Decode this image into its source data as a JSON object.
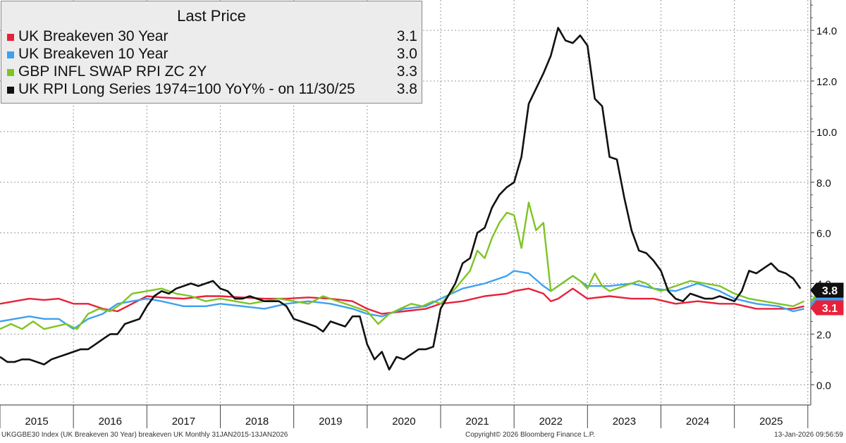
{
  "chart_data": {
    "type": "line",
    "title": "Last Price",
    "ylim": [
      -0.8,
      15.2
    ],
    "yticks": [
      "0.0",
      "2.0",
      "4.0",
      "6.0",
      "8.0",
      "10.0",
      "12.0",
      "14.0"
    ],
    "ytick_values": [
      0,
      2,
      4,
      6,
      8,
      10,
      12,
      14
    ],
    "years": [
      "2015",
      "2016",
      "2017",
      "2018",
      "2019",
      "2020",
      "2021",
      "2022",
      "2023",
      "2024",
      "2025"
    ],
    "x_start": 2015.0,
    "x_end": 2026.04,
    "series": [
      {
        "name": "UK Breakeven 30 Year",
        "last": "3.1",
        "color": "#e8213a",
        "x": [
          2015.0,
          2015.2,
          2015.4,
          2015.6,
          2015.8,
          2016.0,
          2016.2,
          2016.4,
          2016.6,
          2016.8,
          2017.0,
          2017.2,
          2017.5,
          2017.8,
          2018.0,
          2018.3,
          2018.6,
          2018.9,
          2019.2,
          2019.5,
          2019.8,
          2020.0,
          2020.2,
          2020.5,
          2020.8,
          2021.0,
          2021.3,
          2021.6,
          2021.9,
          2022.0,
          2022.2,
          2022.4,
          2022.5,
          2022.6,
          2022.8,
          2023.0,
          2023.3,
          2023.6,
          2023.9,
          2024.2,
          2024.5,
          2024.8,
          2025.0,
          2025.3,
          2025.6,
          2025.8,
          2025.95
        ],
        "y": [
          3.2,
          3.3,
          3.4,
          3.35,
          3.4,
          3.2,
          3.2,
          3.0,
          2.9,
          3.2,
          3.5,
          3.45,
          3.4,
          3.5,
          3.5,
          3.45,
          3.4,
          3.4,
          3.45,
          3.4,
          3.3,
          3.0,
          2.8,
          2.9,
          3.0,
          3.2,
          3.3,
          3.5,
          3.6,
          3.7,
          3.8,
          3.6,
          3.3,
          3.4,
          3.8,
          3.4,
          3.5,
          3.4,
          3.4,
          3.2,
          3.3,
          3.2,
          3.2,
          3.0,
          3.0,
          3.0,
          3.1
        ]
      },
      {
        "name": "UK Breakeven 10 Year",
        "last": "3.0",
        "color": "#3ea1f0",
        "x": [
          2015.0,
          2015.2,
          2015.4,
          2015.6,
          2015.8,
          2016.0,
          2016.2,
          2016.4,
          2016.6,
          2016.8,
          2017.0,
          2017.2,
          2017.5,
          2017.8,
          2018.0,
          2018.3,
          2018.6,
          2018.9,
          2019.2,
          2019.5,
          2019.8,
          2020.0,
          2020.2,
          2020.5,
          2020.8,
          2021.0,
          2021.3,
          2021.6,
          2021.9,
          2022.0,
          2022.2,
          2022.4,
          2022.5,
          2022.6,
          2022.8,
          2023.0,
          2023.3,
          2023.6,
          2023.9,
          2024.2,
          2024.5,
          2024.8,
          2025.0,
          2025.3,
          2025.6,
          2025.8,
          2025.95
        ],
        "y": [
          2.5,
          2.6,
          2.7,
          2.6,
          2.6,
          2.2,
          2.6,
          2.8,
          3.2,
          3.3,
          3.4,
          3.3,
          3.1,
          3.1,
          3.2,
          3.1,
          3.0,
          3.2,
          3.3,
          3.2,
          3.0,
          2.8,
          2.7,
          3.0,
          3.1,
          3.4,
          3.8,
          4.0,
          4.3,
          4.5,
          4.4,
          3.9,
          3.7,
          3.9,
          4.3,
          3.9,
          3.9,
          4.0,
          3.8,
          3.7,
          4.0,
          3.7,
          3.4,
          3.2,
          3.1,
          2.9,
          3.0
        ]
      },
      {
        "name": "GBP INFL SWAP RPI ZC 2Y",
        "last": "3.3",
        "color": "#7ec424",
        "x": [
          2015.0,
          2015.15,
          2015.3,
          2015.45,
          2015.6,
          2015.75,
          2015.9,
          2016.05,
          2016.2,
          2016.35,
          2016.5,
          2016.65,
          2016.8,
          2017.0,
          2017.2,
          2017.4,
          2017.6,
          2017.8,
          2018.0,
          2018.2,
          2018.4,
          2018.6,
          2018.8,
          2019.0,
          2019.2,
          2019.4,
          2019.6,
          2019.8,
          2020.0,
          2020.15,
          2020.3,
          2020.45,
          2020.6,
          2020.75,
          2020.9,
          2021.0,
          2021.2,
          2021.4,
          2021.5,
          2021.6,
          2021.7,
          2021.8,
          2021.9,
          2022.0,
          2022.1,
          2022.2,
          2022.3,
          2022.4,
          2022.5,
          2022.6,
          2022.7,
          2022.8,
          2022.9,
          2023.0,
          2023.1,
          2023.2,
          2023.3,
          2023.4,
          2023.5,
          2023.6,
          2023.7,
          2023.8,
          2023.9,
          2024.0,
          2024.2,
          2024.4,
          2024.6,
          2024.8,
          2025.0,
          2025.2,
          2025.4,
          2025.6,
          2025.8,
          2025.95
        ],
        "y": [
          2.2,
          2.4,
          2.2,
          2.5,
          2.2,
          2.3,
          2.4,
          2.2,
          2.8,
          3.0,
          2.9,
          3.2,
          3.6,
          3.7,
          3.8,
          3.6,
          3.5,
          3.3,
          3.4,
          3.3,
          3.2,
          3.3,
          3.4,
          3.3,
          3.2,
          3.5,
          3.3,
          3.1,
          2.9,
          2.4,
          2.8,
          3.0,
          3.2,
          3.1,
          3.3,
          3.2,
          3.8,
          4.5,
          5.3,
          5.0,
          5.8,
          6.4,
          6.8,
          6.7,
          5.4,
          7.2,
          6.1,
          6.4,
          3.7,
          3.9,
          4.1,
          4.3,
          4.1,
          3.8,
          4.4,
          3.9,
          3.7,
          3.8,
          3.9,
          4.0,
          4.1,
          4.0,
          3.8,
          3.7,
          3.9,
          4.1,
          4.0,
          3.9,
          3.6,
          3.4,
          3.3,
          3.2,
          3.1,
          3.3
        ]
      },
      {
        "name": "UK RPI Long Series 1974=100 YoY% -  on 11/30/25",
        "last": "3.8",
        "color": "#111111",
        "x": [
          2015.0,
          2015.1,
          2015.2,
          2015.3,
          2015.4,
          2015.5,
          2015.6,
          2015.7,
          2015.8,
          2015.9,
          2016.0,
          2016.1,
          2016.2,
          2016.3,
          2016.4,
          2016.5,
          2016.6,
          2016.7,
          2016.8,
          2016.9,
          2017.0,
          2017.1,
          2017.2,
          2017.3,
          2017.4,
          2017.5,
          2017.6,
          2017.7,
          2017.8,
          2017.9,
          2018.0,
          2018.1,
          2018.2,
          2018.3,
          2018.4,
          2018.5,
          2018.6,
          2018.7,
          2018.8,
          2018.9,
          2019.0,
          2019.1,
          2019.2,
          2019.3,
          2019.4,
          2019.5,
          2019.6,
          2019.7,
          2019.8,
          2019.9,
          2020.0,
          2020.1,
          2020.2,
          2020.3,
          2020.4,
          2020.5,
          2020.6,
          2020.7,
          2020.8,
          2020.9,
          2021.0,
          2021.1,
          2021.2,
          2021.3,
          2021.4,
          2021.5,
          2021.6,
          2021.7,
          2021.8,
          2021.9,
          2022.0,
          2022.1,
          2022.2,
          2022.3,
          2022.4,
          2022.5,
          2022.6,
          2022.7,
          2022.8,
          2022.9,
          2023.0,
          2023.1,
          2023.2,
          2023.3,
          2023.4,
          2023.5,
          2023.6,
          2023.7,
          2023.8,
          2023.9,
          2024.0,
          2024.1,
          2024.2,
          2024.3,
          2024.4,
          2024.5,
          2024.6,
          2024.7,
          2024.8,
          2024.9,
          2025.0,
          2025.1,
          2025.2,
          2025.3,
          2025.4,
          2025.5,
          2025.6,
          2025.7,
          2025.8,
          2025.9
        ],
        "y": [
          1.1,
          0.9,
          0.9,
          1.0,
          1.0,
          0.9,
          0.8,
          1.0,
          1.1,
          1.2,
          1.3,
          1.4,
          1.4,
          1.6,
          1.8,
          2.0,
          2.0,
          2.4,
          2.5,
          2.6,
          3.1,
          3.5,
          3.7,
          3.6,
          3.8,
          3.9,
          4.0,
          3.9,
          4.0,
          4.1,
          3.8,
          3.7,
          3.4,
          3.4,
          3.5,
          3.4,
          3.3,
          3.3,
          3.3,
          3.1,
          2.6,
          2.5,
          2.4,
          2.3,
          2.1,
          2.5,
          2.4,
          2.3,
          2.7,
          2.7,
          1.6,
          1.0,
          1.3,
          0.6,
          1.1,
          1.0,
          1.2,
          1.4,
          1.4,
          1.5,
          3.0,
          3.5,
          4.0,
          4.8,
          5.0,
          6.0,
          6.2,
          7.0,
          7.5,
          7.8,
          8.0,
          9.0,
          11.1,
          11.7,
          12.3,
          13.0,
          14.1,
          13.6,
          13.5,
          13.8,
          13.4,
          11.3,
          11.0,
          9.0,
          8.9,
          7.4,
          6.1,
          5.3,
          5.2,
          4.9,
          4.5,
          3.7,
          3.4,
          3.3,
          3.6,
          3.5,
          3.4,
          3.4,
          3.5,
          3.4,
          3.3,
          3.7,
          4.5,
          4.4,
          4.6,
          4.8,
          4.5,
          4.4,
          4.2,
          3.8
        ]
      }
    ]
  },
  "footer": {
    "left": "UKGGBE30 Index (UK Breakeven 30 Year) breakeven UK Monthly 31JAN2015-13JAN2026",
    "center": "Copyright© 2026 Bloomberg Finance L.P.",
    "right": "13-Jan-2026 09:56:59"
  }
}
